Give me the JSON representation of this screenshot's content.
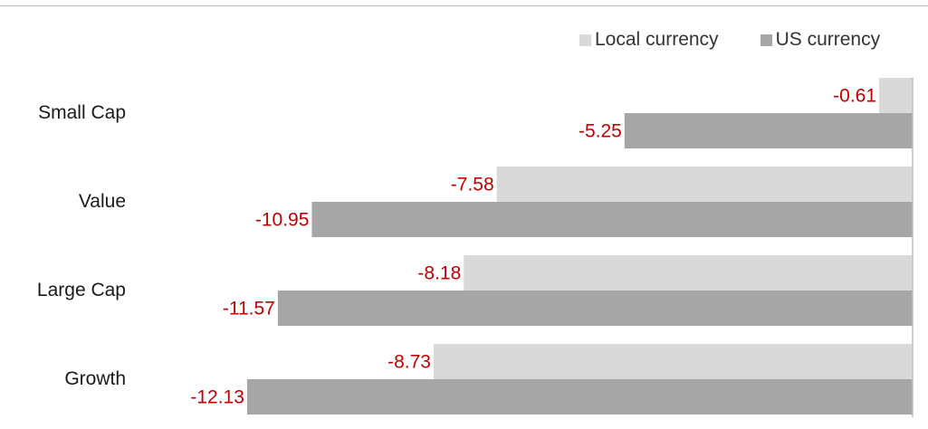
{
  "chart_data": {
    "type": "bar",
    "orientation": "horizontal",
    "categories": [
      "Small Cap",
      "Value",
      "Large Cap",
      "Growth"
    ],
    "series": [
      {
        "name": "Local currency",
        "values": [
          -0.61,
          -7.58,
          -8.18,
          -8.73
        ],
        "color": "#d9d9d9"
      },
      {
        "name": "US currency",
        "values": [
          -5.25,
          -10.95,
          -11.57,
          -12.13
        ],
        "color": "#a6a6a6"
      }
    ],
    "data_labels": {
      "Local currency": [
        "-0.61",
        "-7.58",
        "-8.18",
        "-8.73"
      ],
      "US currency": [
        "-5.25",
        "-10.95",
        "-11.57",
        "-12.13"
      ]
    },
    "label_color": "#c00000",
    "legend_position": "top-right",
    "xlim": [
      -14.9,
      0
    ],
    "grid": false
  }
}
